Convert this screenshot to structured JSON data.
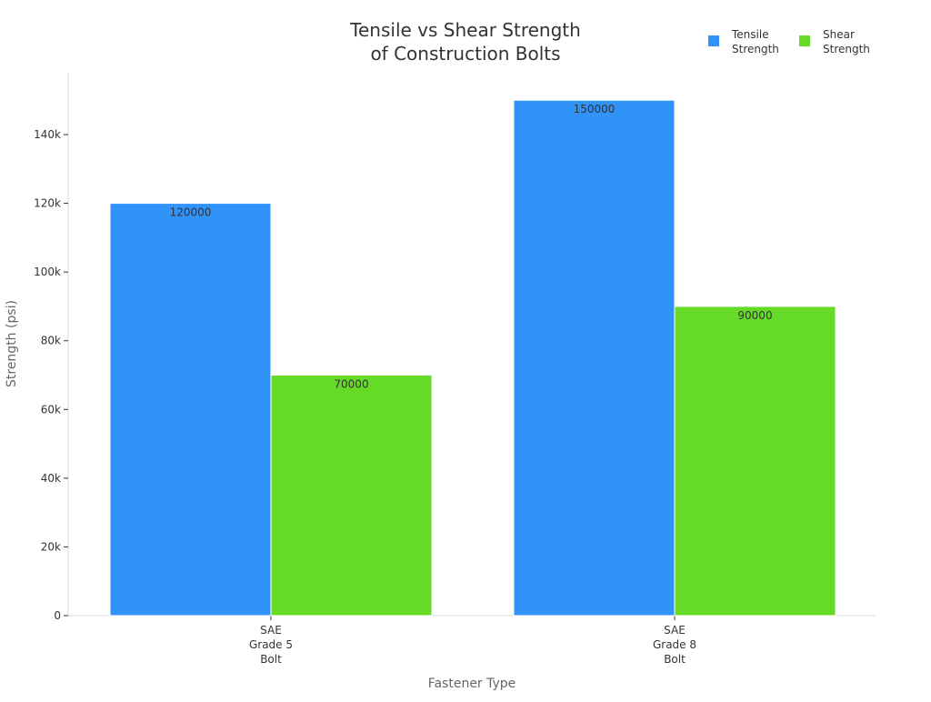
{
  "chart_data": {
    "type": "bar",
    "title": [
      "Tensile vs Shear Strength",
      "of Construction Bolts"
    ],
    "xlabel": "Fastener Type",
    "ylabel": "Strength (psi)",
    "categories": [
      [
        "SAE",
        "Grade 5",
        "Bolt"
      ],
      [
        "SAE",
        "Grade 8",
        "Bolt"
      ]
    ],
    "series": [
      {
        "name": [
          "Tensile",
          "Strength"
        ],
        "color": "#3192f7",
        "values": [
          120000,
          150000
        ],
        "labels": [
          "120000",
          "150000"
        ]
      },
      {
        "name": [
          "Shear",
          "Strength"
        ],
        "color": "#66db27",
        "values": [
          70000,
          90000
        ],
        "labels": [
          "70000",
          "90000"
        ]
      }
    ],
    "ylim": [
      0,
      158000
    ],
    "yticks": [
      0,
      20000,
      40000,
      60000,
      80000,
      100000,
      120000,
      140000
    ],
    "ytick_labels": [
      "0",
      "20k",
      "40k",
      "60k",
      "80k",
      "100k",
      "120k",
      "140k"
    ],
    "grid": false,
    "legend_position": "top-right",
    "axis_color": "#d9d9d9"
  }
}
